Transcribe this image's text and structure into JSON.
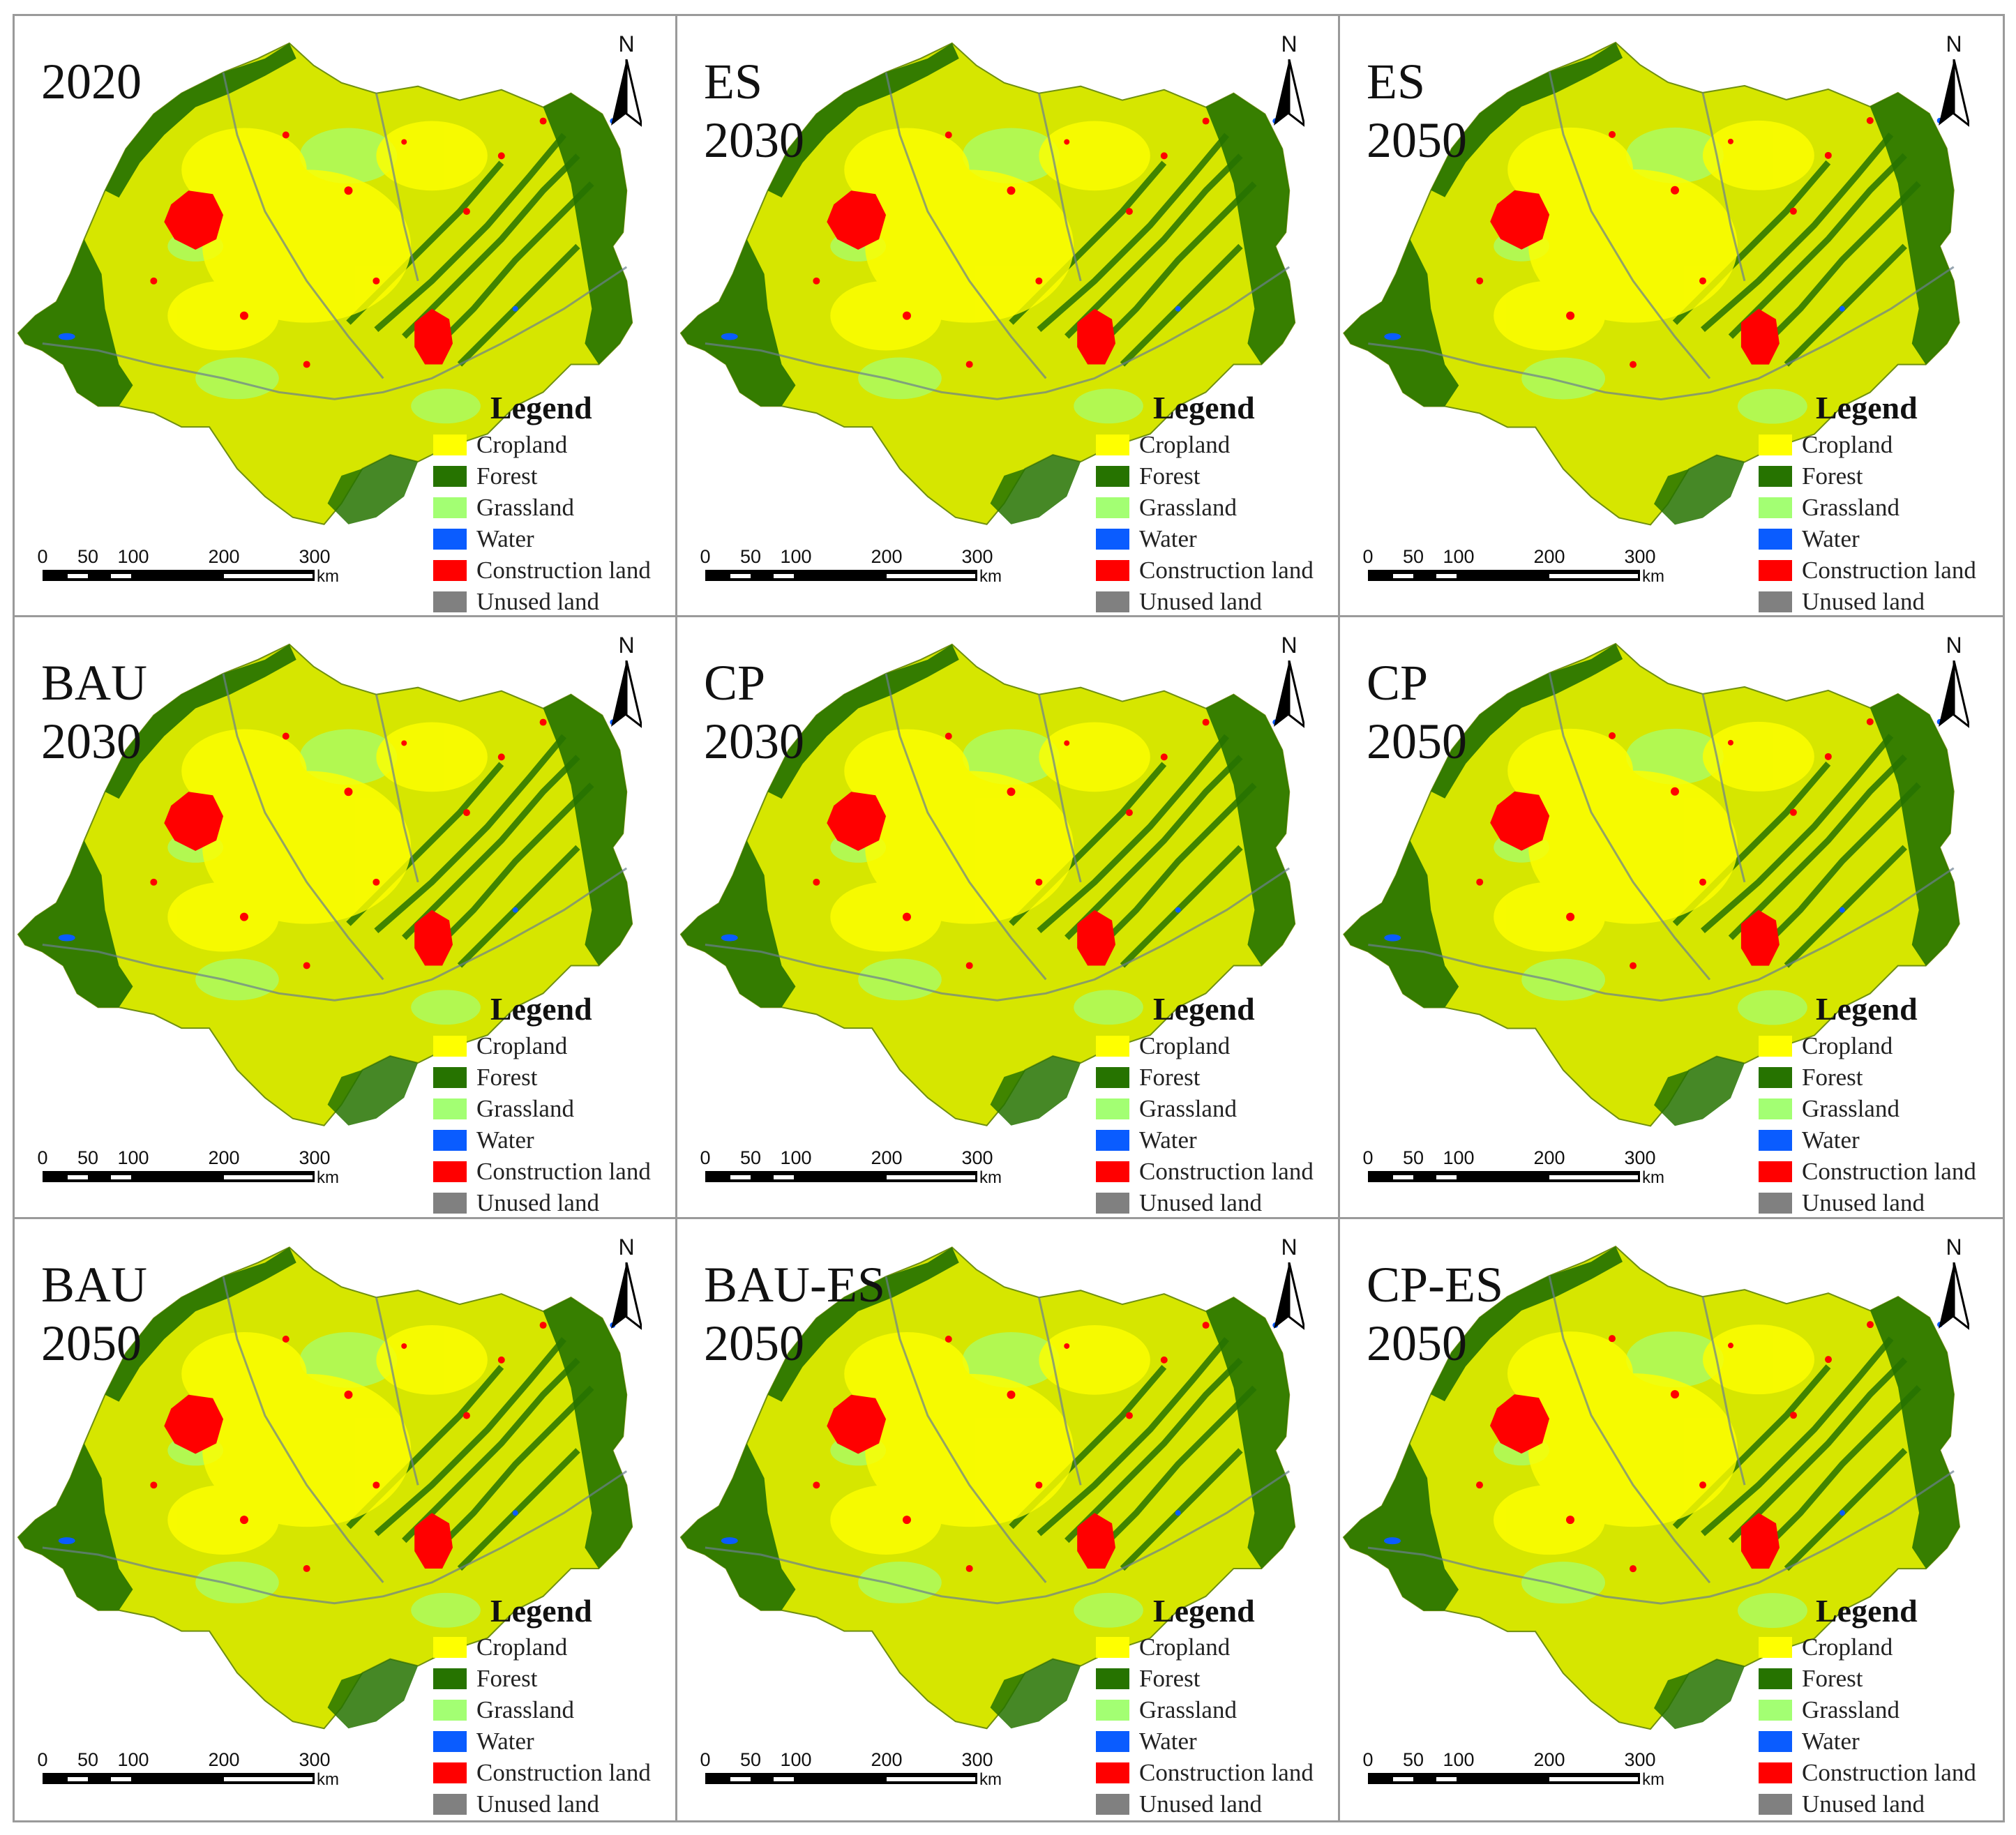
{
  "panels": [
    {
      "title_lines": [
        "2020"
      ]
    },
    {
      "title_lines": [
        "ES",
        "2030"
      ]
    },
    {
      "title_lines": [
        "ES",
        "2050"
      ]
    },
    {
      "title_lines": [
        "BAU",
        "2030"
      ]
    },
    {
      "title_lines": [
        "CP",
        "2030"
      ]
    },
    {
      "title_lines": [
        "CP",
        "2050"
      ]
    },
    {
      "title_lines": [
        "BAU",
        "2050"
      ]
    },
    {
      "title_lines": [
        "BAU-ES",
        "2050"
      ]
    },
    {
      "title_lines": [
        "CP-ES",
        "2050"
      ]
    }
  ],
  "north_label": "N",
  "legend": {
    "title": "Legend",
    "items": [
      {
        "label": "Cropland",
        "color": "#ffff00"
      },
      {
        "label": "Forest",
        "color": "#267300"
      },
      {
        "label": "Grassland",
        "color": "#a3ff73"
      },
      {
        "label": "Water",
        "color": "#0a5cff"
      },
      {
        "label": "Construction land",
        "color": "#ff0000"
      },
      {
        "label": "Unused land",
        "color": "#808080"
      }
    ]
  },
  "scale_bar": {
    "ticks": [
      "0",
      "50",
      "100",
      "200",
      "300"
    ],
    "unit": "km"
  },
  "colors": {
    "cropland": "#ffff00",
    "forest": "#267300",
    "grassland": "#a3ff73",
    "water": "#0a5cff",
    "construction": "#ff0000",
    "panel_border": "#9a9a9a"
  }
}
